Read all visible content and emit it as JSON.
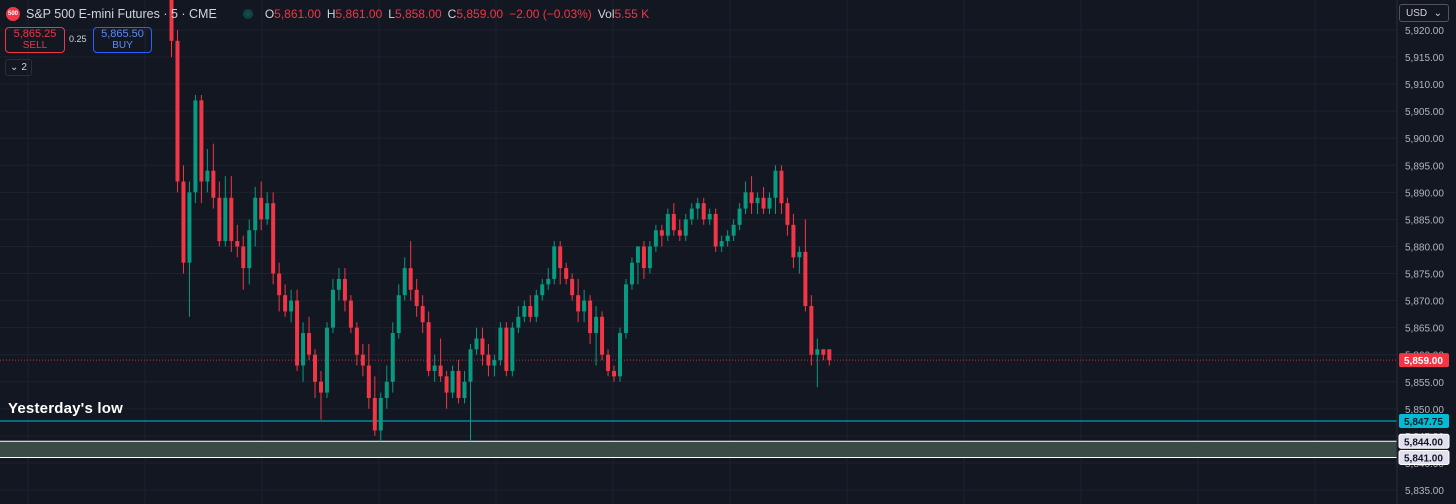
{
  "header": {
    "symbol_badge": "500",
    "title": "S&P 500 E-mini Futures · 5 · CME",
    "open_label": "O",
    "open": "5,861.00",
    "high_label": "H",
    "high": "5,861.00",
    "low_label": "L",
    "low": "5,858.00",
    "close_label": "C",
    "close": "5,859.00",
    "change": "−2.00 (−0.03%)",
    "vol_label": "Vol",
    "vol": "5.55 K"
  },
  "trading": {
    "sell_price": "5,865.25",
    "sell_label": "SELL",
    "spread": "0.25",
    "buy_price": "5,865.50",
    "buy_label": "BUY"
  },
  "collapse": {
    "count": "2"
  },
  "currency": {
    "label": "USD"
  },
  "annotation": "Yesterday's low",
  "colors": {
    "bg": "#131722",
    "up": "#089981",
    "down": "#f23645",
    "grid": "#1e222d",
    "axis_text": "#b2b5be",
    "line": "#00bcd4"
  },
  "chart_data": {
    "type": "candlestick",
    "interval": "5",
    "y_axis_position": "right",
    "ylim": [
      5833,
      5924
    ],
    "y_ticks": [
      5920,
      5915,
      5910,
      5905,
      5900,
      5895,
      5890,
      5885,
      5880,
      5875,
      5870,
      5865,
      5860,
      5855,
      5850,
      5845,
      5840,
      5835
    ],
    "y_tick_labels": [
      "5,920.00",
      "5,915.00",
      "5,910.00",
      "5,905.00",
      "5,900.00",
      "5,895.00",
      "5,890.00",
      "5,885.00",
      "5,880.00",
      "5,875.00",
      "5,870.00",
      "5,865.00",
      "5,860.00",
      "5,855.00",
      "5,850.00",
      "5,845.00",
      "5,840.00",
      "5,835.00"
    ],
    "grid": true,
    "price_lines": [
      {
        "value": 5859.0,
        "label": "5,859.00",
        "color": "#f23645",
        "style": "dotted"
      },
      {
        "value": 5847.75,
        "label": "5,847.75",
        "color": "#00bcd4",
        "style": "solid"
      }
    ],
    "zone": {
      "from": 5844.0,
      "to": 5841.0,
      "labels": [
        "5,844.00",
        "5,841.00"
      ],
      "fill": "#3a4a45",
      "border": "#ffffff"
    },
    "ohlc": [
      [
        5940.0,
        5940.0,
        5915.0,
        5918.0
      ],
      [
        5918.0,
        5920.0,
        5890.0,
        5892.0
      ],
      [
        5892.0,
        5895.0,
        5875.0,
        5877.0
      ],
      [
        5877.0,
        5892.0,
        5867.0,
        5890.0
      ],
      [
        5890.0,
        5908.0,
        5888.0,
        5907.0
      ],
      [
        5907.0,
        5908.0,
        5888.0,
        5892.0
      ],
      [
        5892.0,
        5898.0,
        5890.0,
        5894.0
      ],
      [
        5894.0,
        5899.0,
        5887.0,
        5889.0
      ],
      [
        5889.0,
        5892.0,
        5880.0,
        5881.0
      ],
      [
        5881.0,
        5893.0,
        5880.0,
        5889.0
      ],
      [
        5889.0,
        5893.0,
        5879.0,
        5881.0
      ],
      [
        5881.0,
        5884.0,
        5878.0,
        5880.0
      ],
      [
        5880.0,
        5882.0,
        5872.0,
        5876.0
      ],
      [
        5876.0,
        5885.0,
        5873.0,
        5883.0
      ],
      [
        5883.0,
        5891.0,
        5880.0,
        5889.0
      ],
      [
        5889.0,
        5892.0,
        5883.0,
        5885.0
      ],
      [
        5885.0,
        5890.0,
        5884.0,
        5888.0
      ],
      [
        5888.0,
        5890.0,
        5873.0,
        5875.0
      ],
      [
        5875.0,
        5877.0,
        5868.0,
        5871.0
      ],
      [
        5871.0,
        5873.0,
        5867.0,
        5868.0
      ],
      [
        5868.0,
        5872.0,
        5866.0,
        5870.0
      ],
      [
        5870.0,
        5872.0,
        5857.0,
        5858.0
      ],
      [
        5858.0,
        5866.0,
        5855.0,
        5864.0
      ],
      [
        5864.0,
        5867.0,
        5859.0,
        5860.0
      ],
      [
        5860.0,
        5861.0,
        5852.0,
        5855.0
      ],
      [
        5855.0,
        5857.0,
        5848.0,
        5853.0
      ],
      [
        5853.0,
        5866.0,
        5852.0,
        5865.0
      ],
      [
        5865.0,
        5874.0,
        5864.0,
        5872.0
      ],
      [
        5872.0,
        5876.0,
        5870.0,
        5874.0
      ],
      [
        5874.0,
        5876.0,
        5868.0,
        5870.0
      ],
      [
        5870.0,
        5871.0,
        5864.0,
        5865.0
      ],
      [
        5865.0,
        5866.0,
        5858.0,
        5860.0
      ],
      [
        5860.0,
        5862.0,
        5856.0,
        5858.0
      ],
      [
        5858.0,
        5862.0,
        5850.0,
        5852.0
      ],
      [
        5852.0,
        5856.0,
        5845.0,
        5846.0
      ],
      [
        5846.0,
        5853.0,
        5844.0,
        5852.0
      ],
      [
        5852.0,
        5858.0,
        5850.0,
        5855.0
      ],
      [
        5855.0,
        5866.0,
        5853.0,
        5864.0
      ],
      [
        5864.0,
        5873.0,
        5863.0,
        5871.0
      ],
      [
        5871.0,
        5878.0,
        5870.0,
        5876.0
      ],
      [
        5876.0,
        5881.0,
        5870.0,
        5872.0
      ],
      [
        5872.0,
        5874.0,
        5867.0,
        5869.0
      ],
      [
        5869.0,
        5871.0,
        5864.0,
        5866.0
      ],
      [
        5866.0,
        5868.0,
        5856.0,
        5857.0
      ],
      [
        5857.0,
        5860.0,
        5855.0,
        5858.0
      ],
      [
        5858.0,
        5863.0,
        5855.0,
        5856.0
      ],
      [
        5856.0,
        5857.0,
        5850.0,
        5853.0
      ],
      [
        5853.0,
        5858.0,
        5852.0,
        5857.0
      ],
      [
        5857.0,
        5859.0,
        5851.0,
        5852.0
      ],
      [
        5852.0,
        5857.0,
        5851.0,
        5855.0
      ],
      [
        5855.0,
        5862.0,
        5844.0,
        5861.0
      ],
      [
        5861.0,
        5865.0,
        5860.0,
        5863.0
      ],
      [
        5863.0,
        5865.0,
        5858.0,
        5860.0
      ],
      [
        5860.0,
        5862.0,
        5856.0,
        5858.0
      ],
      [
        5858.0,
        5860.0,
        5856.0,
        5859.0
      ],
      [
        5859.0,
        5866.0,
        5858.0,
        5865.0
      ],
      [
        5865.0,
        5866.0,
        5856.0,
        5857.0
      ],
      [
        5857.0,
        5866.0,
        5856.0,
        5865.0
      ],
      [
        5865.0,
        5869.0,
        5864.0,
        5867.0
      ],
      [
        5867.0,
        5870.0,
        5866.0,
        5869.0
      ],
      [
        5869.0,
        5871.0,
        5866.0,
        5867.0
      ],
      [
        5867.0,
        5872.0,
        5866.0,
        5871.0
      ],
      [
        5871.0,
        5874.0,
        5870.0,
        5873.0
      ],
      [
        5873.0,
        5876.0,
        5872.0,
        5874.0
      ],
      [
        5874.0,
        5881.0,
        5873.0,
        5880.0
      ],
      [
        5880.0,
        5881.0,
        5873.0,
        5876.0
      ],
      [
        5876.0,
        5877.0,
        5873.0,
        5874.0
      ],
      [
        5874.0,
        5875.0,
        5870.0,
        5871.0
      ],
      [
        5871.0,
        5874.0,
        5866.0,
        5868.0
      ],
      [
        5868.0,
        5872.0,
        5866.0,
        5870.0
      ],
      [
        5870.0,
        5871.0,
        5862.0,
        5864.0
      ],
      [
        5864.0,
        5869.0,
        5858.0,
        5867.0
      ],
      [
        5867.0,
        5868.0,
        5859.0,
        5860.0
      ],
      [
        5860.0,
        5861.0,
        5856.0,
        5857.0
      ],
      [
        5857.0,
        5858.0,
        5855.0,
        5856.0
      ],
      [
        5856.0,
        5865.0,
        5855.0,
        5864.0
      ],
      [
        5864.0,
        5874.0,
        5863.0,
        5873.0
      ],
      [
        5873.0,
        5878.0,
        5872.0,
        5877.0
      ],
      [
        5877.0,
        5880.0,
        5873.0,
        5880.0
      ],
      [
        5880.0,
        5881.0,
        5874.0,
        5876.0
      ],
      [
        5876.0,
        5881.0,
        5875.0,
        5880.0
      ],
      [
        5880.0,
        5884.0,
        5879.0,
        5883.0
      ],
      [
        5883.0,
        5884.0,
        5880.0,
        5882.0
      ],
      [
        5882.0,
        5887.0,
        5881.0,
        5886.0
      ],
      [
        5886.0,
        5888.0,
        5882.0,
        5883.0
      ],
      [
        5883.0,
        5885.0,
        5881.0,
        5882.0
      ],
      [
        5882.0,
        5886.0,
        5881.0,
        5885.0
      ],
      [
        5885.0,
        5888.0,
        5884.0,
        5887.0
      ],
      [
        5887.0,
        5889.0,
        5885.0,
        5888.0
      ],
      [
        5888.0,
        5889.0,
        5884.0,
        5885.0
      ],
      [
        5885.0,
        5887.0,
        5884.0,
        5886.0
      ],
      [
        5886.0,
        5887.0,
        5879.0,
        5880.0
      ],
      [
        5880.0,
        5882.0,
        5879.0,
        5881.0
      ],
      [
        5881.0,
        5883.0,
        5880.0,
        5882.0
      ],
      [
        5882.0,
        5885.0,
        5881.0,
        5884.0
      ],
      [
        5884.0,
        5888.0,
        5883.0,
        5887.0
      ],
      [
        5887.0,
        5892.0,
        5886.0,
        5890.0
      ],
      [
        5890.0,
        5893.0,
        5886.0,
        5888.0
      ],
      [
        5888.0,
        5890.0,
        5886.0,
        5889.0
      ],
      [
        5889.0,
        5891.0,
        5886.0,
        5887.0
      ],
      [
        5887.0,
        5890.0,
        5886.0,
        5889.0
      ],
      [
        5889.0,
        5895.0,
        5886.0,
        5894.0
      ],
      [
        5894.0,
        5895.0,
        5886.0,
        5888.0
      ],
      [
        5888.0,
        5889.0,
        5882.0,
        5884.0
      ],
      [
        5884.0,
        5886.0,
        5876.0,
        5878.0
      ],
      [
        5878.0,
        5880.0,
        5875.0,
        5879.0
      ],
      [
        5879.0,
        5885.0,
        5868.0,
        5869.0
      ],
      [
        5869.0,
        5871.0,
        5858.0,
        5860.0
      ],
      [
        5860.0,
        5863.0,
        5854.0,
        5861.0
      ],
      [
        5861.0,
        5861.0,
        5859.0,
        5860.0
      ],
      [
        5861.0,
        5861.0,
        5858.0,
        5859.0
      ]
    ]
  }
}
